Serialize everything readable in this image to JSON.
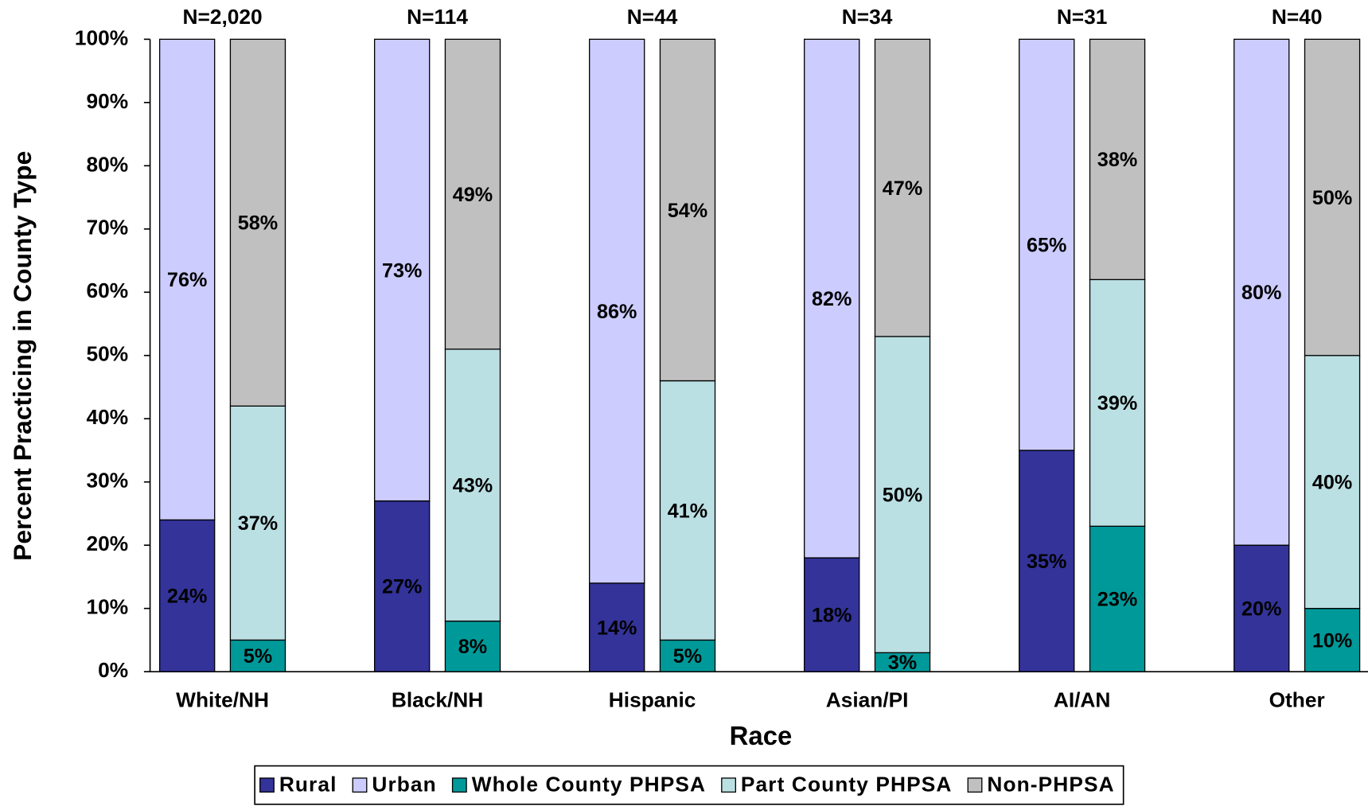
{
  "chart_data": {
    "type": "stacked_grouped_bar",
    "xlabel": "Race",
    "ylabel": "Percent Practicing in County Type",
    "categories": [
      "White/NH",
      "Black/NH",
      "Hispanic",
      "Asian/PI",
      "AI/AN",
      "Other"
    ],
    "annotations": [
      "N=2,020",
      "N=114",
      "N=44",
      "N=34",
      "N=31",
      "N=40"
    ],
    "series": [
      {
        "name": "Rural",
        "stack": "county",
        "color": "#333399",
        "values": [
          24,
          27,
          14,
          18,
          35,
          20
        ],
        "value_labels": [
          "24%",
          "27%",
          "14%",
          "18%",
          "35%",
          "20%"
        ]
      },
      {
        "name": "Urban",
        "stack": "county",
        "color": "#ccccff",
        "values": [
          76,
          73,
          86,
          82,
          65,
          80
        ],
        "value_labels": [
          "76%",
          "73%",
          "86%",
          "82%",
          "65%",
          "80%"
        ]
      },
      {
        "name": "Whole County PHPSA",
        "stack": "phpsa",
        "color": "#009999",
        "values": [
          5,
          8,
          5,
          3,
          23,
          10
        ],
        "value_labels": [
          "5%",
          "8%",
          "5%",
          "3%",
          "23%",
          "10%"
        ]
      },
      {
        "name": "Part County PHPSA",
        "stack": "phpsa",
        "color": "#bbe0e3",
        "values": [
          37,
          43,
          41,
          50,
          39,
          40
        ],
        "value_labels": [
          "37%",
          "43%",
          "41%",
          "50%",
          "39%",
          "40%"
        ]
      },
      {
        "name": "Non-PHPSA",
        "stack": "phpsa",
        "color": "#c0c0c0",
        "values": [
          58,
          49,
          54,
          47,
          38,
          50
        ],
        "value_labels": [
          "58%",
          "49%",
          "54%",
          "47%",
          "38%",
          "50%"
        ]
      }
    ],
    "ylim": [
      0,
      100
    ],
    "yticks": [
      {
        "value": 0,
        "label": "0%"
      },
      {
        "value": 10,
        "label": "10%"
      },
      {
        "value": 20,
        "label": "20%"
      },
      {
        "value": 30,
        "label": "30%"
      },
      {
        "value": 40,
        "label": "40%"
      },
      {
        "value": 50,
        "label": "50%"
      },
      {
        "value": 60,
        "label": "60%"
      },
      {
        "value": 70,
        "label": "70%"
      },
      {
        "value": 80,
        "label": "80%"
      },
      {
        "value": 90,
        "label": "90%"
      },
      {
        "value": 100,
        "label": "100%"
      }
    ],
    "legend": "bottom"
  }
}
